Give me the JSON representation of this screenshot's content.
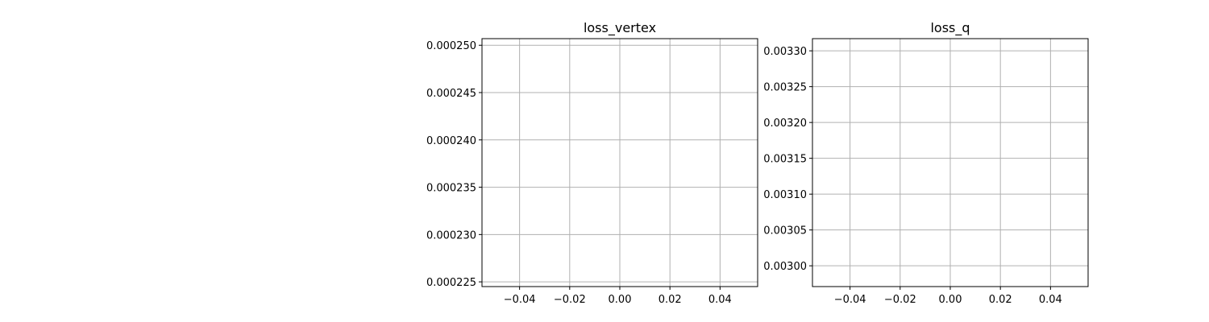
{
  "chart_data": [
    {
      "type": "line",
      "title": "loss_vertex",
      "xlabel": "",
      "ylabel": "",
      "grid": true,
      "xlim": [
        -0.055,
        0.055
      ],
      "ylim": [
        0.0002245,
        0.0002507
      ],
      "xticks": [
        -0.04,
        -0.02,
        0.0,
        0.02,
        0.04
      ],
      "xtick_labels": [
        "−0.04",
        "−0.02",
        "0.00",
        "0.02",
        "0.04"
      ],
      "yticks": [
        0.000225,
        0.00023,
        0.000235,
        0.00024,
        0.000245,
        0.00025
      ],
      "ytick_labels": [
        "0.000225",
        "0.000230",
        "0.000235",
        "0.000240",
        "0.000245",
        "0.000250"
      ],
      "series": []
    },
    {
      "type": "line",
      "title": "loss_q",
      "xlabel": "",
      "ylabel": "",
      "grid": true,
      "xlim": [
        -0.055,
        0.055
      ],
      "ylim": [
        0.002971,
        0.003317
      ],
      "xticks": [
        -0.04,
        -0.02,
        0.0,
        0.02,
        0.04
      ],
      "xtick_labels": [
        "−0.04",
        "−0.02",
        "0.00",
        "0.02",
        "0.04"
      ],
      "yticks": [
        0.003,
        0.00305,
        0.0031,
        0.00315,
        0.0032,
        0.00325,
        0.0033
      ],
      "ytick_labels": [
        "0.00300",
        "0.00305",
        "0.00310",
        "0.00315",
        "0.00320",
        "0.00325",
        "0.00330"
      ],
      "series": []
    }
  ]
}
